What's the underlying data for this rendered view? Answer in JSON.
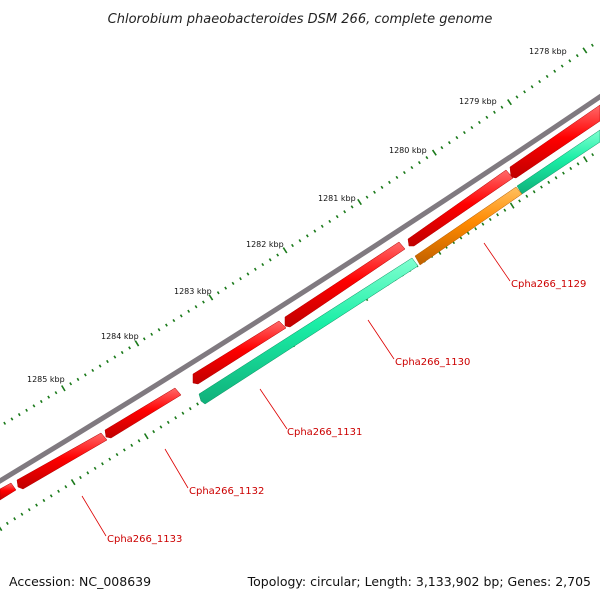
{
  "title": "Chlorobium phaeobacteroides DSM 266, complete genome",
  "accession_text": "Accession: NC_008639",
  "summary_text": "Topology: circular; Length: 3,133,902 bp; Genes: 2,705",
  "colors": {
    "backbone": "#807a80",
    "forward_gene": "#ff0000",
    "reverse_gene": "#1aeea6",
    "highlight_gene": "#ff8a00",
    "ticks": "#1b7a1b",
    "gene_label": "#cc0000",
    "leader_line": "#dd0000"
  },
  "ticks": [
    {
      "label": "1278 kbp"
    },
    {
      "label": "1279 kbp"
    },
    {
      "label": "1280 kbp"
    },
    {
      "label": "1281 kbp"
    },
    {
      "label": "1282 kbp"
    },
    {
      "label": "1283 kbp"
    },
    {
      "label": "1284 kbp"
    },
    {
      "label": "1285 kbp"
    }
  ],
  "gene_labels": [
    {
      "label": "Cpha266_1129"
    },
    {
      "label": "Cpha266_1130"
    },
    {
      "label": "Cpha266_1131"
    },
    {
      "label": "Cpha266_1132"
    },
    {
      "label": "Cpha266_1133"
    }
  ]
}
